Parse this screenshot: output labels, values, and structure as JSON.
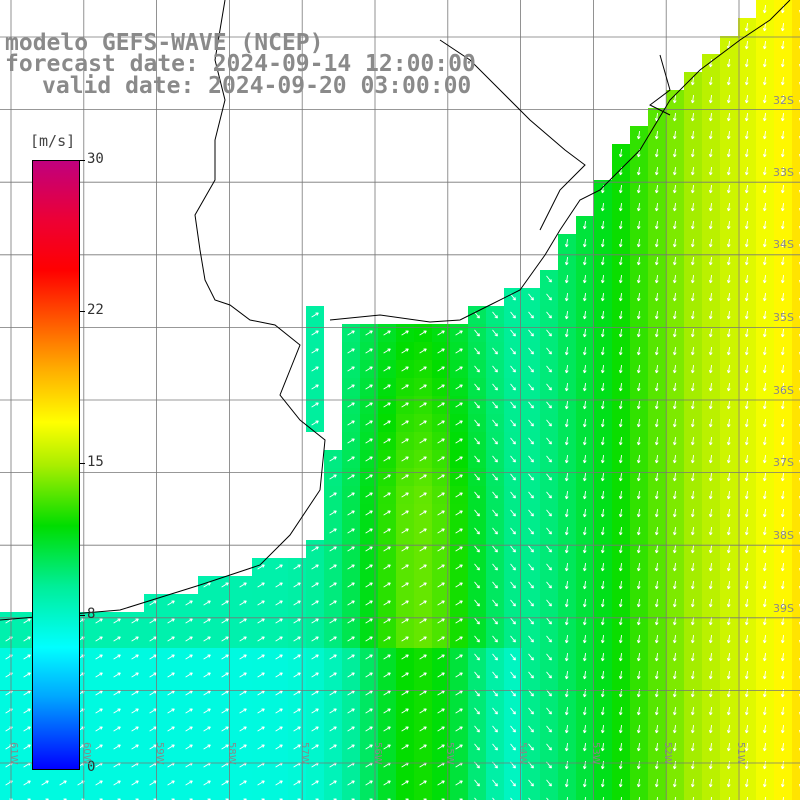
{
  "title": {
    "line1": "modelo GEFS-WAVE (NCEP)",
    "line2": "forecast date: 2024-09-14 12:00:00",
    "line3": "valid date: 2024-09-20 03:00:00"
  },
  "colorbar": {
    "unit": "[m/s]",
    "ticks": [
      "30",
      "22",
      "15",
      "8",
      "0"
    ],
    "colors": [
      "#0000ff",
      "#00a8ff",
      "#00ffff",
      "#00ee99",
      "#00dd00",
      "#aaee00",
      "#ffff00",
      "#ffaa00",
      "#ff5500",
      "#ff0000",
      "#c0007e"
    ]
  },
  "lat_labels": [
    "32S",
    "33S",
    "34S",
    "35S",
    "36S",
    "37S",
    "38S",
    "39S"
  ],
  "lon_labels": [
    "61W",
    "60W",
    "59W",
    "58W",
    "57W",
    "56W",
    "55W",
    "54W",
    "53W",
    "52W",
    "51W"
  ]
}
